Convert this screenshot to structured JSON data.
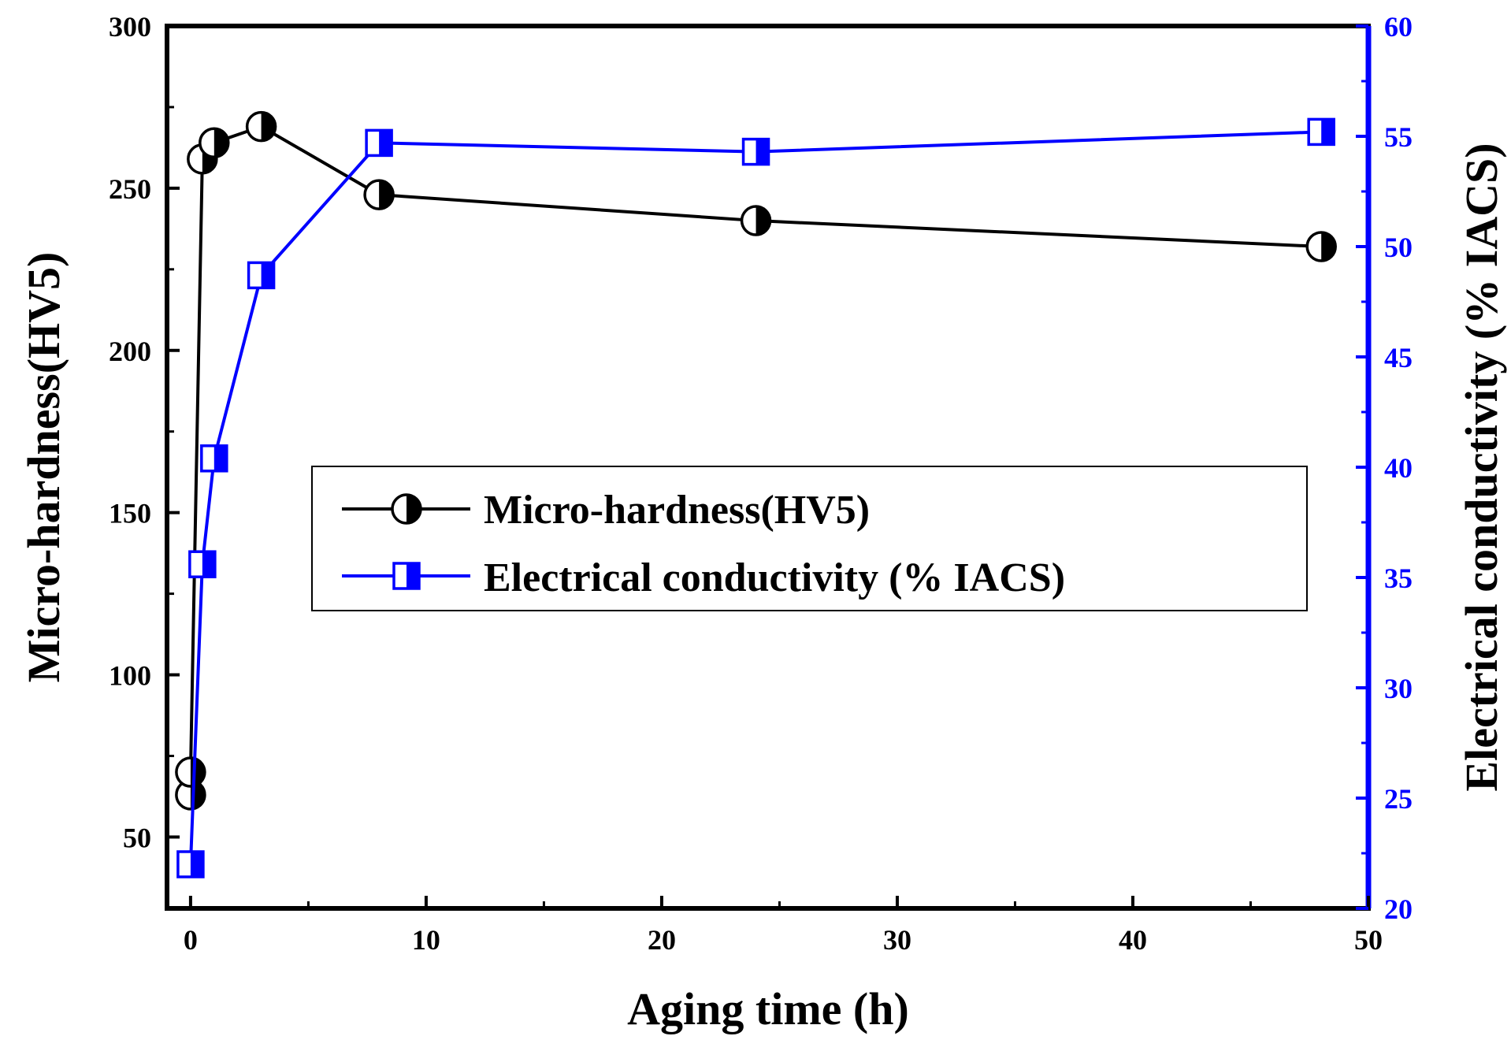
{
  "chart_data": {
    "type": "line",
    "title": "",
    "xlabel": "Aging time (h)",
    "ylabel": "Micro-hardness(HV5)",
    "y2label": "Electrical conductivity (% IACS)",
    "xlim": [
      -1,
      50
    ],
    "ylim": [
      28,
      300
    ],
    "y2lim": [
      20,
      60
    ],
    "x_ticks": [
      0,
      10,
      20,
      30,
      40,
      50
    ],
    "y_ticks": [
      50,
      100,
      150,
      200,
      250,
      300
    ],
    "y2_ticks": [
      20,
      25,
      30,
      35,
      40,
      45,
      50,
      55,
      60
    ],
    "legend_position": "center",
    "series": [
      {
        "name": "Micro-hardness(HV5)",
        "axis": "left",
        "color": "#000000",
        "marker": "half-filled-circle",
        "points": [
          [
            0,
            63
          ],
          [
            0,
            70
          ],
          [
            0.5,
            259
          ],
          [
            1,
            264
          ],
          [
            3,
            269
          ],
          [
            8,
            248
          ],
          [
            24,
            240
          ],
          [
            48,
            232
          ]
        ]
      },
      {
        "name": "Electrical conductivity (% IACS)",
        "axis": "right",
        "color": "#0000ff",
        "marker": "half-filled-square",
        "points": [
          [
            0,
            22
          ],
          [
            0.5,
            35.6
          ],
          [
            1,
            40.4
          ],
          [
            3,
            48.7
          ],
          [
            8,
            54.7
          ],
          [
            24,
            54.3
          ],
          [
            48,
            55.2
          ]
        ]
      }
    ]
  }
}
